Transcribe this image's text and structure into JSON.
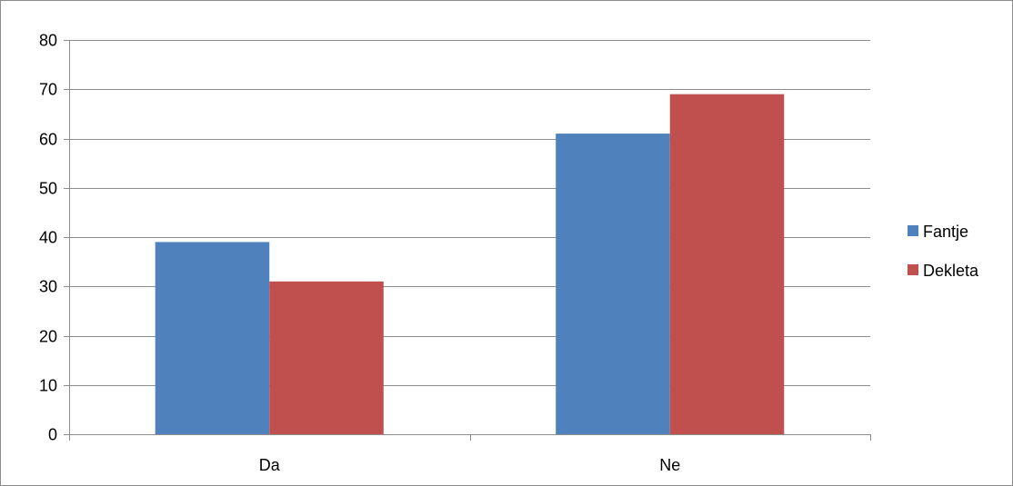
{
  "chart_data": {
    "type": "bar",
    "categories": [
      "Da",
      "Ne"
    ],
    "series": [
      {
        "name": "Fantje",
        "values": [
          39,
          61
        ],
        "color": "#4f81bd"
      },
      {
        "name": "Dekleta",
        "values": [
          31,
          69
        ],
        "color": "#c0504d"
      }
    ],
    "ylim": [
      0,
      80
    ],
    "yticks": [
      0,
      10,
      20,
      30,
      40,
      50,
      60,
      70,
      80
    ],
    "grid": true,
    "legend_position": "right",
    "colors": {
      "gridline": "#8c8c8c",
      "axis": "#8c8c8c"
    }
  }
}
